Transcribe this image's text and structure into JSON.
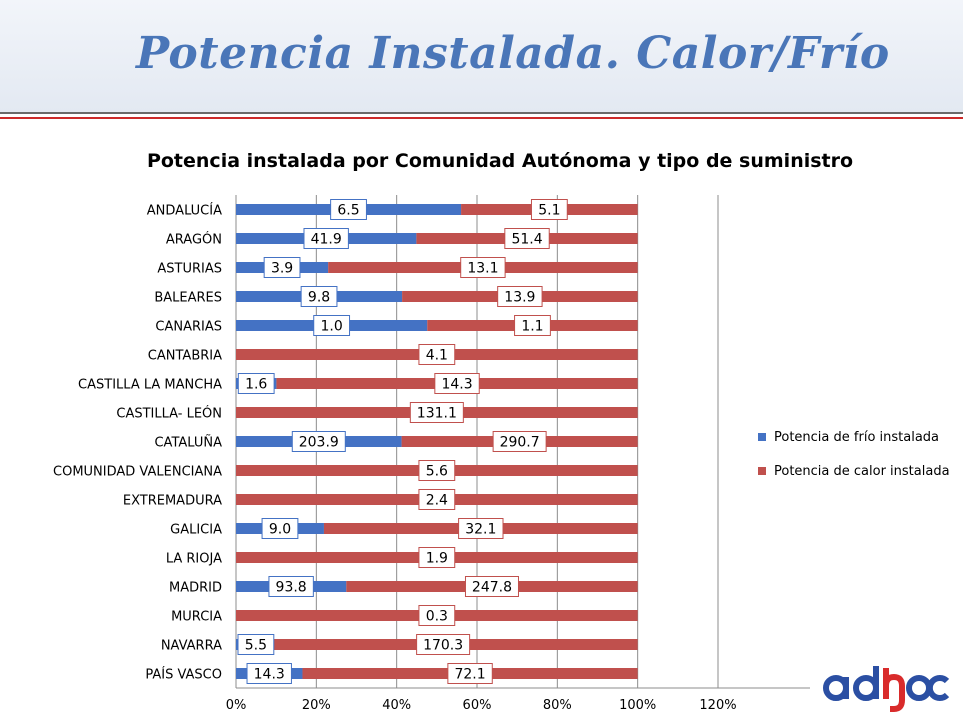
{
  "page_title": "Potencia Instalada. Calor/Frío",
  "colors": {
    "frio": "#4472c4",
    "calor": "#c0504d",
    "title": "#4a76b8",
    "logo_blue": "#2b4fa3",
    "logo_red": "#d92b2b"
  },
  "logo": {
    "text": "adhoc"
  },
  "chart_data": {
    "type": "bar",
    "orientation": "horizontal",
    "stacked": "percent",
    "title": "Potencia instalada por Comunidad Autónoma y tipo de suministro",
    "categories": [
      "ANDALUCÍA",
      "ARAGÓN",
      "ASTURIAS",
      "BALEARES",
      "CANARIAS",
      "CANTABRIA",
      "CASTILLA LA MANCHA",
      "CASTILLA- LEÓN",
      "CATALUÑA",
      "COMUNIDAD VALENCIANA",
      "EXTREMADURA",
      "GALICIA",
      "LA RIOJA",
      "MADRID",
      "MURCIA",
      "NAVARRA",
      "PAÍS VASCO"
    ],
    "series": [
      {
        "name": "Potencia de frío instalada",
        "values": [
          6.5,
          41.9,
          3.9,
          9.8,
          1.0,
          null,
          1.6,
          null,
          203.9,
          null,
          null,
          9.0,
          null,
          93.8,
          null,
          5.5,
          14.3
        ]
      },
      {
        "name": "Potencia de calor instalada",
        "values": [
          5.1,
          51.4,
          13.1,
          13.9,
          1.1,
          4.1,
          14.3,
          131.1,
          290.7,
          5.6,
          2.4,
          32.1,
          1.9,
          247.8,
          0.3,
          170.3,
          72.1
        ]
      }
    ],
    "x_ticks": [
      "0%",
      "20%",
      "40%",
      "60%",
      "80%",
      "100%",
      "120%"
    ],
    "xlim": [
      0,
      1.2
    ],
    "legend": "right",
    "grid": true
  }
}
